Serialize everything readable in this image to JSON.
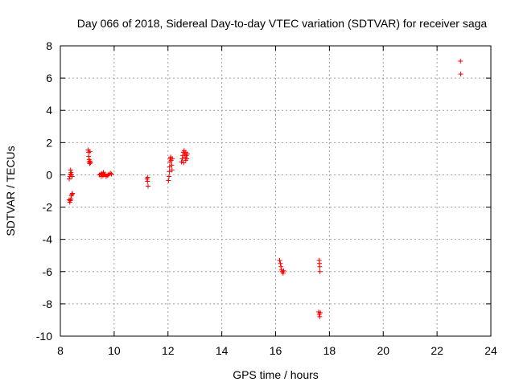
{
  "chart_data": {
    "type": "scatter",
    "title": "Day 066 of 2018, Sidereal Day-to-day VTEC variation (SDTVAR) for receiver saga",
    "xlabel": "GPS time / hours",
    "ylabel": "SDTVAR / TECUs",
    "xlim": [
      8,
      24
    ],
    "ylim": [
      -10,
      8
    ],
    "xticks": [
      8,
      10,
      12,
      14,
      16,
      18,
      20,
      22,
      24
    ],
    "yticks": [
      8,
      6,
      4,
      2,
      0,
      -2,
      -4,
      -6,
      -8,
      -10
    ],
    "grid": true,
    "marker": "+",
    "series_color": "#ff0000",
    "series": [
      {
        "name": "SDTVAR",
        "points": [
          [
            8.33,
            -0.25
          ],
          [
            8.35,
            -0.1
          ],
          [
            8.37,
            0.05
          ],
          [
            8.38,
            0.3
          ],
          [
            8.4,
            0.15
          ],
          [
            8.42,
            0.0
          ],
          [
            8.44,
            -0.1
          ],
          [
            8.33,
            -1.55
          ],
          [
            8.35,
            -1.7
          ],
          [
            8.37,
            -1.6
          ],
          [
            8.39,
            -1.5
          ],
          [
            8.41,
            -1.3
          ],
          [
            8.43,
            -1.2
          ],
          [
            8.45,
            -1.15
          ],
          [
            9.03,
            1.55
          ],
          [
            9.05,
            1.4
          ],
          [
            9.05,
            1.15
          ],
          [
            9.07,
            0.95
          ],
          [
            9.07,
            0.8
          ],
          [
            9.09,
            0.7
          ],
          [
            9.1,
            0.85
          ],
          [
            9.12,
            0.75
          ],
          [
            9.1,
            1.45
          ],
          [
            9.45,
            0.0
          ],
          [
            9.5,
            0.05
          ],
          [
            9.55,
            0.1
          ],
          [
            9.58,
            -0.05
          ],
          [
            9.62,
            0.0
          ],
          [
            9.66,
            0.05
          ],
          [
            9.7,
            -0.1
          ],
          [
            9.74,
            -0.05
          ],
          [
            9.78,
            0.0
          ],
          [
            9.82,
            0.05
          ],
          [
            9.86,
            0.1
          ],
          [
            9.9,
            0.05
          ],
          [
            9.52,
            -0.1
          ],
          [
            9.6,
            0.15
          ],
          [
            11.22,
            -0.25
          ],
          [
            11.24,
            -0.4
          ],
          [
            11.26,
            -0.7
          ],
          [
            11.25,
            -0.15
          ],
          [
            12.02,
            -0.35
          ],
          [
            12.04,
            -0.1
          ],
          [
            12.05,
            0.2
          ],
          [
            12.06,
            0.5
          ],
          [
            12.07,
            0.8
          ],
          [
            12.08,
            1.0
          ],
          [
            12.1,
            1.1
          ],
          [
            12.12,
            0.9
          ],
          [
            12.14,
            0.6
          ],
          [
            12.15,
            0.3
          ],
          [
            12.16,
            1.0
          ],
          [
            12.5,
            0.8
          ],
          [
            12.53,
            1.0
          ],
          [
            12.55,
            1.2
          ],
          [
            12.57,
            1.4
          ],
          [
            12.6,
            1.5
          ],
          [
            12.62,
            1.3
          ],
          [
            12.64,
            1.1
          ],
          [
            12.66,
            0.9
          ],
          [
            12.68,
            1.2
          ],
          [
            12.7,
            1.0
          ],
          [
            12.72,
            1.3
          ],
          [
            12.58,
            0.75
          ],
          [
            12.66,
            1.4
          ],
          [
            16.15,
            -5.3
          ],
          [
            16.18,
            -5.5
          ],
          [
            16.2,
            -5.7
          ],
          [
            16.22,
            -5.9
          ],
          [
            16.25,
            -6.0
          ],
          [
            16.28,
            -6.1
          ],
          [
            16.3,
            -5.95
          ],
          [
            17.62,
            -5.3
          ],
          [
            17.63,
            -5.5
          ],
          [
            17.64,
            -5.7
          ],
          [
            17.65,
            -6.0
          ],
          [
            17.6,
            -8.5
          ],
          [
            17.62,
            -8.65
          ],
          [
            17.64,
            -8.8
          ],
          [
            17.66,
            -8.55
          ],
          [
            22.87,
            7.05
          ],
          [
            22.88,
            6.25
          ]
        ]
      }
    ]
  }
}
